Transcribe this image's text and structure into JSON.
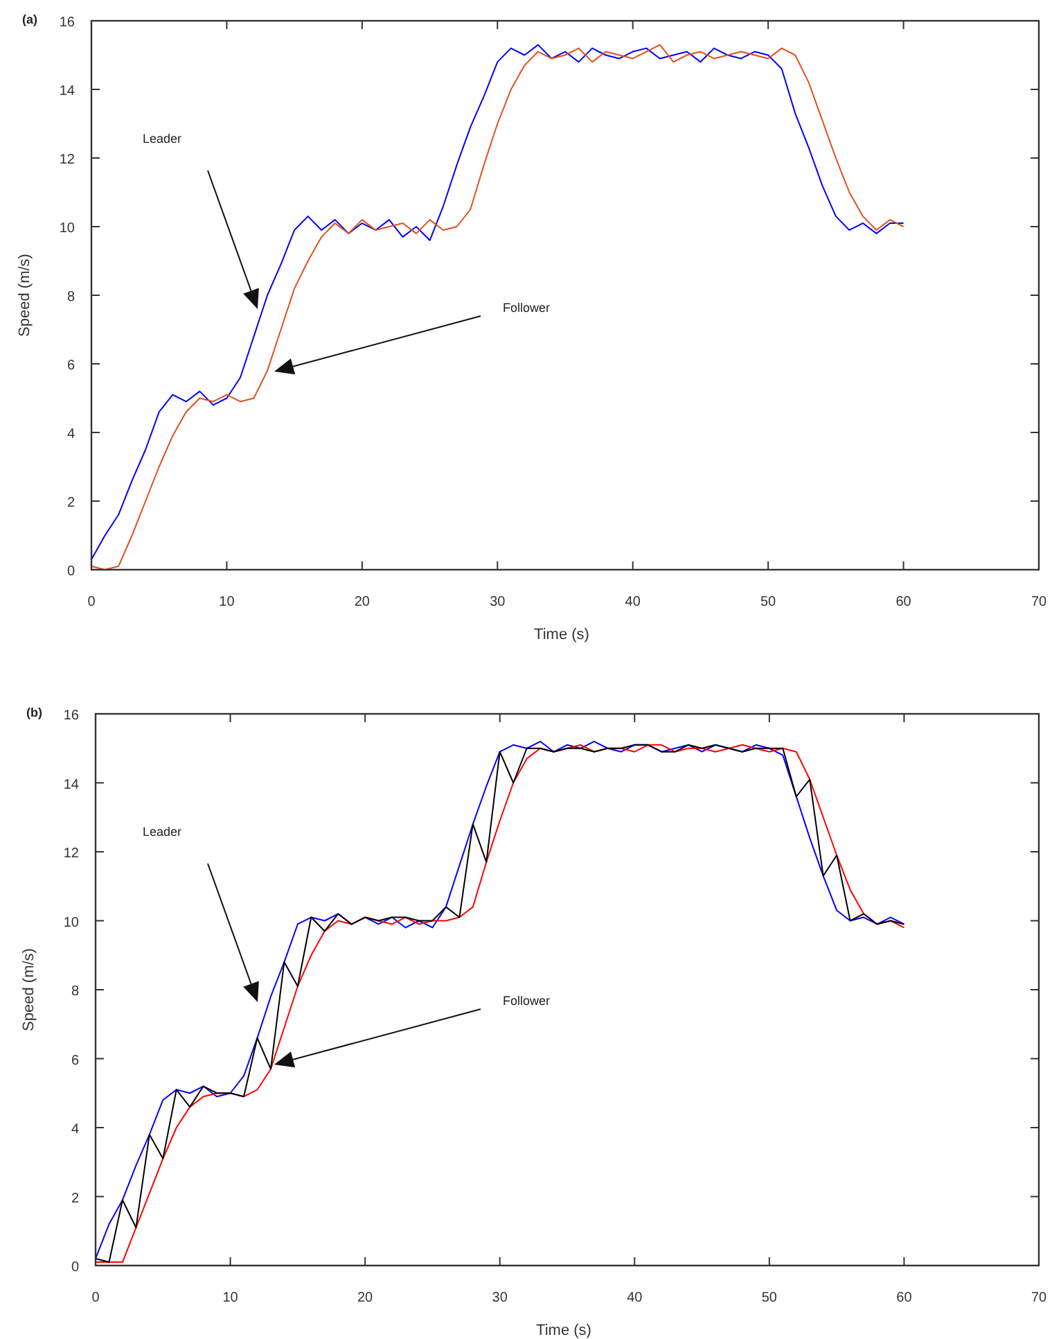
{
  "chart_data": [
    {
      "type": "line",
      "xlabel": "Time (s)",
      "ylabel": "Speed (m/s)",
      "xlim": [
        0,
        70
      ],
      "ylim": [
        0,
        16
      ],
      "xticks": [
        0,
        10,
        20,
        30,
        40,
        50,
        60,
        70
      ],
      "yticks": [
        0,
        2,
        4,
        6,
        8,
        10,
        12,
        14,
        16
      ],
      "grid": false,
      "marker": "none",
      "line_style": "solid",
      "x": [
        0,
        1,
        2,
        3,
        4,
        5,
        6,
        7,
        8,
        9,
        10,
        11,
        12,
        13,
        14,
        15,
        16,
        17,
        18,
        19,
        20,
        21,
        22,
        23,
        24,
        25,
        26,
        27,
        28,
        29,
        30,
        31,
        32,
        33,
        34,
        35,
        36,
        37,
        38,
        39,
        40,
        41,
        42,
        43,
        44,
        45,
        46,
        47,
        48,
        49,
        50,
        51,
        52,
        53,
        54,
        55,
        56,
        57,
        58,
        59,
        60
      ],
      "series": [
        {
          "color": "#0000ff",
          "values": [
            0.3,
            1.0,
            1.6,
            2.6,
            3.5,
            4.6,
            5.1,
            4.9,
            5.2,
            4.8,
            5.0,
            5.6,
            6.8,
            8.0,
            8.9,
            9.9,
            10.3,
            9.9,
            10.2,
            9.8,
            10.1,
            9.9,
            10.2,
            9.7,
            10.0,
            9.6,
            10.6,
            11.8,
            12.9,
            13.8,
            14.8,
            15.2,
            15.0,
            15.3,
            14.9,
            15.1,
            14.8,
            15.2,
            15.0,
            14.9,
            15.1,
            15.2,
            14.9,
            15.0,
            15.1,
            14.8,
            15.2,
            15.0,
            14.9,
            15.1,
            15.0,
            14.6,
            13.3,
            12.3,
            11.2,
            10.3,
            9.9,
            10.1,
            9.8,
            10.1,
            10.1
          ]
        },
        {
          "color": "#e0501a",
          "values": [
            0.1,
            0.0,
            0.1,
            1.0,
            2.0,
            3.0,
            3.9,
            4.6,
            5.0,
            4.9,
            5.1,
            4.9,
            5.0,
            5.8,
            7.0,
            8.2,
            9.0,
            9.7,
            10.1,
            9.8,
            10.2,
            9.9,
            10.0,
            10.1,
            9.8,
            10.2,
            9.9,
            10.0,
            10.5,
            11.8,
            13.0,
            14.0,
            14.7,
            15.1,
            14.9,
            15.0,
            15.2,
            14.8,
            15.1,
            15.0,
            14.9,
            15.1,
            15.3,
            14.8,
            15.0,
            15.1,
            14.9,
            15.0,
            15.1,
            15.0,
            14.9,
            15.2,
            15.0,
            14.2,
            13.1,
            12.0,
            11.0,
            10.3,
            9.9,
            10.2,
            10.0
          ]
        }
      ],
      "annotations": [
        "(a)",
        "Leader",
        "Follower"
      ]
    },
    {
      "type": "line",
      "xlabel": "Time (s)",
      "ylabel": "Speed (m/s)",
      "xlim": [
        0,
        70
      ],
      "ylim": [
        0,
        16
      ],
      "xticks": [
        0,
        10,
        20,
        30,
        40,
        50,
        60,
        70
      ],
      "yticks": [
        0,
        2,
        4,
        6,
        8,
        10,
        12,
        14,
        16
      ],
      "grid": false,
      "marker": "none",
      "line_style": "solid",
      "x": [
        0,
        1,
        2,
        3,
        4,
        5,
        6,
        7,
        8,
        9,
        10,
        11,
        12,
        13,
        14,
        15,
        16,
        17,
        18,
        19,
        20,
        21,
        22,
        23,
        24,
        25,
        26,
        27,
        28,
        29,
        30,
        31,
        32,
        33,
        34,
        35,
        36,
        37,
        38,
        39,
        40,
        41,
        42,
        43,
        44,
        45,
        46,
        47,
        48,
        49,
        50,
        51,
        52,
        53,
        54,
        55,
        56,
        57,
        58,
        59,
        60
      ],
      "series": [
        {
          "color": "#0000ff",
          "values": [
            0.2,
            1.2,
            1.9,
            2.9,
            3.8,
            4.8,
            5.1,
            5.0,
            5.2,
            4.9,
            5.0,
            5.5,
            6.6,
            7.8,
            8.8,
            9.9,
            10.1,
            10.0,
            10.2,
            9.9,
            10.1,
            9.9,
            10.1,
            9.8,
            10.0,
            9.8,
            10.4,
            11.6,
            12.8,
            13.9,
            14.9,
            15.1,
            15.0,
            15.2,
            14.9,
            15.1,
            15.0,
            15.2,
            15.0,
            14.9,
            15.1,
            15.1,
            14.9,
            15.0,
            15.1,
            14.9,
            15.1,
            15.0,
            14.9,
            15.1,
            15.0,
            14.8,
            13.6,
            12.4,
            11.3,
            10.3,
            10.0,
            10.1,
            9.9,
            10.1,
            9.9
          ]
        },
        {
          "color": "#ff0000",
          "values": [
            0.1,
            0.1,
            0.1,
            1.1,
            2.1,
            3.1,
            4.0,
            4.6,
            4.9,
            5.0,
            5.0,
            4.9,
            5.1,
            5.7,
            6.9,
            8.1,
            9.0,
            9.7,
            10.0,
            9.9,
            10.1,
            10.0,
            9.9,
            10.1,
            9.9,
            10.0,
            10.0,
            10.1,
            10.4,
            11.7,
            12.9,
            14.0,
            14.7,
            15.0,
            14.9,
            15.0,
            15.1,
            14.9,
            15.0,
            15.0,
            14.9,
            15.1,
            15.1,
            14.9,
            15.0,
            15.0,
            14.9,
            15.0,
            15.1,
            15.0,
            14.9,
            15.0,
            14.9,
            14.1,
            13.0,
            11.9,
            10.9,
            10.2,
            9.9,
            10.0,
            9.8
          ]
        },
        {
          "color": "#000000",
          "values": [
            0.2,
            0.1,
            1.9,
            1.1,
            3.8,
            3.1,
            5.1,
            4.6,
            5.2,
            5.0,
            5.0,
            4.9,
            6.6,
            5.7,
            8.8,
            8.1,
            10.1,
            9.7,
            10.2,
            9.9,
            10.1,
            10.0,
            10.1,
            10.1,
            10.0,
            10.0,
            10.4,
            10.1,
            12.8,
            11.7,
            14.9,
            14.0,
            15.0,
            15.0,
            14.9,
            15.0,
            15.0,
            14.9,
            15.0,
            15.0,
            15.1,
            15.1,
            14.9,
            14.9,
            15.1,
            15.0,
            15.1,
            15.0,
            14.9,
            15.0,
            15.0,
            15.0,
            13.6,
            14.1,
            11.3,
            11.9,
            10.0,
            10.2,
            9.9,
            10.0,
            9.9
          ]
        }
      ],
      "annotations": [
        "(b)",
        "Leader",
        "Follower"
      ]
    }
  ]
}
